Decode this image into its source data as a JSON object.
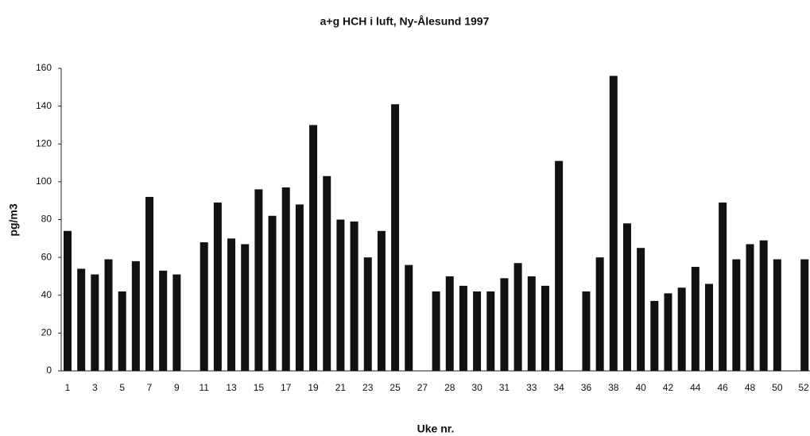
{
  "chart_data": {
    "type": "bar",
    "title": "a+g HCH i luft, Ny-Ålesund 1997",
    "x_label": "Uke nr.",
    "y_label": "pg/m3",
    "categories": [
      "1",
      null,
      "3",
      null,
      "5",
      null,
      "7",
      null,
      "9",
      null,
      "11",
      null,
      "13",
      null,
      "15",
      null,
      "17",
      null,
      "19",
      null,
      "21",
      null,
      "23",
      null,
      "25",
      null,
      "27",
      null,
      "28",
      null,
      "30",
      null,
      "31",
      null,
      "33",
      null,
      "34",
      null,
      "36",
      null,
      "38",
      null,
      "40",
      null,
      "42",
      null,
      "44",
      null,
      "46",
      null,
      "48",
      null,
      "50",
      null,
      "52"
    ],
    "values": [
      74,
      54,
      51,
      59,
      42,
      58,
      92,
      53,
      51,
      null,
      68,
      89,
      70,
      67,
      96,
      82,
      97,
      88,
      130,
      103,
      80,
      79,
      60,
      74,
      141,
      56,
      null,
      42,
      50,
      45,
      42,
      42,
      49,
      57,
      50,
      45,
      111,
      null,
      42,
      60,
      156,
      78,
      65,
      37,
      41,
      44,
      55,
      46,
      89,
      59,
      67,
      69,
      59,
      null,
      59
    ],
    "color": "#111111",
    "ylim": [
      0,
      160
    ],
    "yticks": [
      0,
      20,
      40,
      60,
      80,
      100,
      120,
      140,
      160
    ],
    "grid": false
  }
}
